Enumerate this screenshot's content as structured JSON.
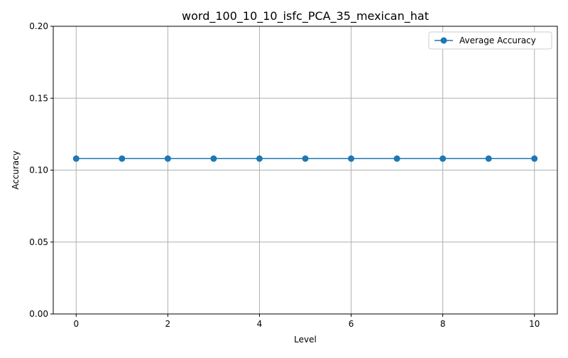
{
  "chart_data": {
    "type": "line",
    "title": "word_100_10_10_isfc_PCA_35_mexican_hat",
    "xlabel": "Level",
    "ylabel": "Accuracy",
    "x": [
      0,
      1,
      2,
      3,
      4,
      5,
      6,
      7,
      8,
      9,
      10
    ],
    "xlim": [
      -0.5,
      10.5
    ],
    "ylim": [
      0,
      0.2
    ],
    "xticks": [
      0,
      2,
      4,
      6,
      8,
      10
    ],
    "xtick_labels": [
      "0",
      "2",
      "4",
      "6",
      "8",
      "10"
    ],
    "yticks": [
      0,
      0.05,
      0.1,
      0.15,
      0.2
    ],
    "ytick_labels": [
      "0.00",
      "0.05",
      "0.10",
      "0.15",
      "0.20"
    ],
    "grid": true,
    "legend_position": "upper-right",
    "series": [
      {
        "name": "Average Accuracy",
        "color": "#1f77b4",
        "marker": "circle",
        "values": [
          0.108,
          0.108,
          0.108,
          0.108,
          0.108,
          0.108,
          0.108,
          0.108,
          0.108,
          0.108,
          0.108
        ]
      }
    ]
  }
}
